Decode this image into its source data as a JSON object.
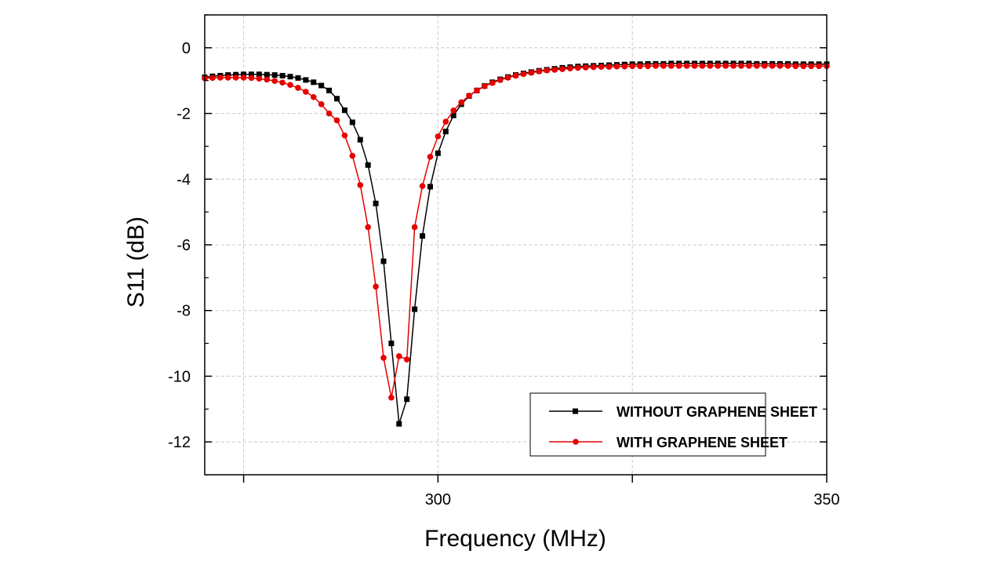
{
  "chart_data": {
    "type": "line",
    "title": "",
    "xlabel": "Frequency (MHz)",
    "ylabel": "S11 (dB)",
    "xlim": [
      270,
      350
    ],
    "ylim": [
      -13,
      1
    ],
    "xticks": [
      275,
      300,
      325,
      350
    ],
    "xtick_labels": [
      "",
      "300",
      "",
      "350"
    ],
    "yticks": [
      0,
      -2,
      -4,
      -6,
      -8,
      -10,
      -12
    ],
    "ytick_labels": [
      "0",
      "-2",
      "-4",
      "-6",
      "-8",
      "-10",
      "-12"
    ],
    "grid": true,
    "legend_position": "bottom-right",
    "series": [
      {
        "name": "WITHOUT GRAPHENE SHEET",
        "color": "#000000",
        "marker": "square",
        "x": [
          270,
          271,
          272,
          273,
          274,
          275,
          276,
          277,
          278,
          279,
          280,
          281,
          282,
          283,
          284,
          285,
          286,
          287,
          288,
          289,
          290,
          291,
          292,
          293,
          294,
          295,
          296,
          297,
          298,
          299,
          300,
          301,
          302,
          303,
          304,
          305,
          306,
          307,
          308,
          309,
          310,
          311,
          312,
          313,
          314,
          315,
          316,
          317,
          318,
          319,
          320,
          321,
          322,
          323,
          324,
          325,
          326,
          327,
          328,
          329,
          330,
          331,
          332,
          333,
          334,
          335,
          336,
          337,
          338,
          339,
          340,
          341,
          342,
          343,
          344,
          345,
          346,
          347,
          348,
          349,
          350
        ],
        "values": [
          -0.9,
          -0.87,
          -0.85,
          -0.83,
          -0.82,
          -0.81,
          -0.81,
          -0.81,
          -0.82,
          -0.83,
          -0.85,
          -0.88,
          -0.92,
          -0.98,
          -1.05,
          -1.15,
          -1.3,
          -1.55,
          -1.9,
          -2.27,
          -2.8,
          -3.57,
          -4.74,
          -6.5,
          -9.0,
          -11.45,
          -10.7,
          -7.96,
          -5.73,
          -4.23,
          -3.21,
          -2.55,
          -2.06,
          -1.72,
          -1.47,
          -1.3,
          -1.16,
          -1.05,
          -0.96,
          -0.89,
          -0.83,
          -0.78,
          -0.74,
          -0.7,
          -0.67,
          -0.64,
          -0.61,
          -0.59,
          -0.57,
          -0.56,
          -0.55,
          -0.54,
          -0.53,
          -0.52,
          -0.51,
          -0.5,
          -0.5,
          -0.49,
          -0.49,
          -0.49,
          -0.48,
          -0.48,
          -0.48,
          -0.48,
          -0.48,
          -0.48,
          -0.48,
          -0.48,
          -0.48,
          -0.48,
          -0.48,
          -0.49,
          -0.49,
          -0.49,
          -0.49,
          -0.49,
          -0.5,
          -0.5,
          -0.5,
          -0.5,
          -0.5
        ]
      },
      {
        "name": "WITH GRAPHENE SHEET",
        "color": "#e60000",
        "marker": "circle",
        "x": [
          270,
          271,
          272,
          273,
          274,
          275,
          276,
          277,
          278,
          279,
          280,
          281,
          282,
          283,
          284,
          285,
          286,
          287,
          288,
          289,
          290,
          291,
          292,
          293,
          294,
          295,
          296,
          297,
          298,
          299,
          300,
          301,
          302,
          303,
          304,
          305,
          306,
          307,
          308,
          309,
          310,
          311,
          312,
          313,
          314,
          315,
          316,
          317,
          318,
          319,
          320,
          321,
          322,
          323,
          324,
          325,
          326,
          327,
          328,
          329,
          330,
          331,
          332,
          333,
          334,
          335,
          336,
          337,
          338,
          339,
          340,
          341,
          342,
          343,
          344,
          345,
          346,
          347,
          348,
          349,
          350
        ],
        "values": [
          -0.93,
          -0.92,
          -0.91,
          -0.91,
          -0.91,
          -0.91,
          -0.92,
          -0.94,
          -0.97,
          -1.01,
          -1.06,
          -1.13,
          -1.22,
          -1.34,
          -1.5,
          -1.72,
          -2.0,
          -2.21,
          -2.67,
          -3.29,
          -4.18,
          -5.46,
          -7.27,
          -9.44,
          -10.65,
          -9.39,
          -9.49,
          -5.46,
          -4.21,
          -3.32,
          -2.7,
          -2.25,
          -1.91,
          -1.66,
          -1.46,
          -1.3,
          -1.17,
          -1.07,
          -0.98,
          -0.91,
          -0.85,
          -0.8,
          -0.76,
          -0.72,
          -0.69,
          -0.67,
          -0.65,
          -0.63,
          -0.61,
          -0.6,
          -0.59,
          -0.58,
          -0.58,
          -0.57,
          -0.57,
          -0.56,
          -0.56,
          -0.56,
          -0.55,
          -0.55,
          -0.55,
          -0.55,
          -0.55,
          -0.55,
          -0.55,
          -0.55,
          -0.55,
          -0.55,
          -0.55,
          -0.55,
          -0.55,
          -0.55,
          -0.55,
          -0.55,
          -0.55,
          -0.55,
          -0.56,
          -0.56,
          -0.56,
          -0.56,
          -0.56
        ]
      }
    ]
  }
}
